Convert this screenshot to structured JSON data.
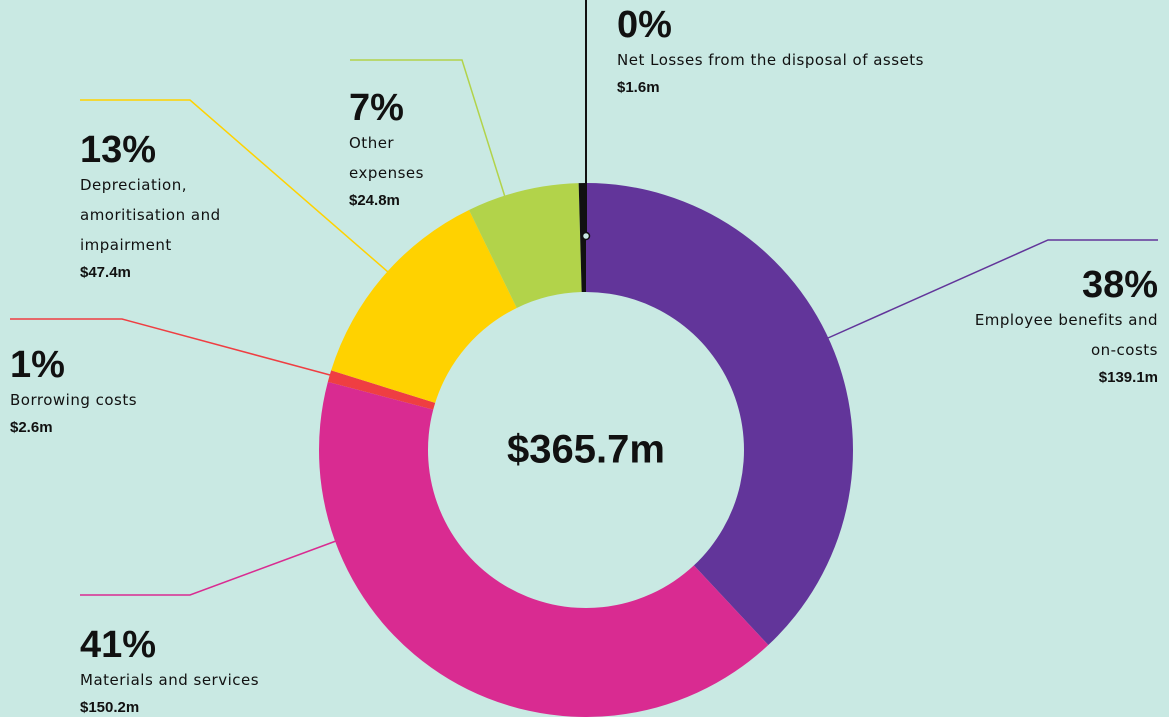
{
  "chart_data": {
    "type": "donut",
    "categories": [
      "Employee benefits and on-costs",
      "Materials and services",
      "Borrowing costs",
      "Depreciation, amoritisation and impairment",
      "Other expenses",
      "Net Losses from the disposal of assets"
    ],
    "values": [
      139.1,
      150.2,
      2.6,
      47.4,
      24.8,
      1.6
    ],
    "value_labels": [
      "$139.1m",
      "$150.2m",
      "$2.6m",
      "$47.4m",
      "$24.8m",
      "$1.6m"
    ],
    "percents": [
      38,
      41,
      1,
      13,
      7,
      0
    ],
    "percent_labels": [
      "38%",
      "41%",
      "1%",
      "13%",
      "7%",
      "0%"
    ],
    "colors": [
      "#62359a",
      "#d92b91",
      "#ef3e42",
      "#ffd200",
      "#b2d34a",
      "#111111"
    ],
    "total": 365.7,
    "total_label": "$365.7m"
  }
}
